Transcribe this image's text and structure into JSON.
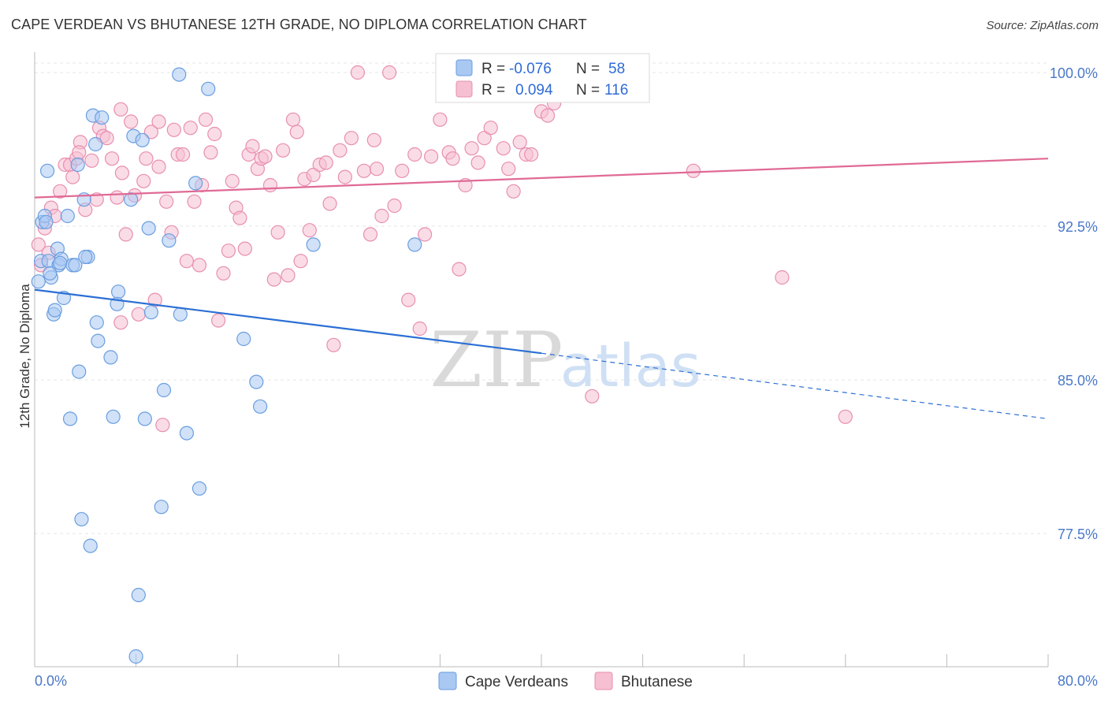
{
  "title": "CAPE VERDEAN VS BHUTANESE 12TH GRADE, NO DIPLOMA CORRELATION CHART",
  "source": "Source: ZipAtlas.com",
  "watermark": {
    "zip": "ZIP",
    "atlas": "atlas"
  },
  "colors": {
    "blue_fill": "#a9c8f2",
    "blue_stroke": "#6a9ee0",
    "blue_line": "#2b6fd4",
    "pink_fill": "#f6bfd2",
    "pink_stroke": "#e88fb0",
    "pink_line": "#e06a95",
    "tick_text": "#4a78c8",
    "grid": "#e4e4e4"
  },
  "legend": {
    "rows": [
      {
        "r_label": "R =",
        "r_value": "-0.076",
        "n_label": "N =",
        "n_value": "58",
        "color": "blue"
      },
      {
        "r_label": "R =",
        "r_value": "0.094",
        "n_label": "N =",
        "n_value": "116",
        "color": "pink"
      }
    ]
  },
  "bottom_legend": [
    {
      "label": "Cape Verdeans",
      "color": "blue"
    },
    {
      "label": "Bhutanese",
      "color": "pink"
    }
  ],
  "chart_data": {
    "type": "scatter",
    "title": "CAPE VERDEAN VS BHUTANESE 12TH GRADE, NO DIPLOMA CORRELATION CHART",
    "xlabel": "",
    "ylabel": "12th Grade, No Diploma",
    "xlim": [
      0,
      80
    ],
    "ylim": [
      71,
      101
    ],
    "x_tick_labels": [
      "0.0%",
      "80.0%"
    ],
    "y_ticks": [
      77.5,
      85.0,
      92.5,
      100.0
    ],
    "y_tick_labels": [
      "77.5%",
      "85.0%",
      "92.5%",
      "100.0%"
    ],
    "grid": true,
    "series": [
      {
        "name": "Cape Verdeans",
        "color": "blue",
        "r": -0.076,
        "n": 58,
        "trend": {
          "x0": 0,
          "y0": 89.4,
          "x1": 40,
          "y1": 86.3,
          "dashed_to_x": 80,
          "dashed_to_y": 83.1
        },
        "points": [
          [
            0.3,
            89.8
          ],
          [
            0.5,
            90.8
          ],
          [
            0.6,
            92.7
          ],
          [
            0.8,
            93.0
          ],
          [
            1.0,
            95.2
          ],
          [
            1.1,
            90.8
          ],
          [
            1.3,
            90.0
          ],
          [
            1.5,
            88.2
          ],
          [
            1.6,
            88.4
          ],
          [
            1.8,
            91.4
          ],
          [
            1.9,
            90.6
          ],
          [
            2.1,
            90.9
          ],
          [
            2.3,
            89.0
          ],
          [
            2.6,
            93.0
          ],
          [
            2.8,
            83.1
          ],
          [
            3.0,
            90.6
          ],
          [
            3.2,
            90.6
          ],
          [
            3.4,
            95.5
          ],
          [
            3.5,
            85.4
          ],
          [
            3.7,
            78.2
          ],
          [
            3.9,
            93.8
          ],
          [
            4.2,
            91.0
          ],
          [
            4.4,
            76.9
          ],
          [
            4.6,
            97.9
          ],
          [
            4.8,
            96.5
          ],
          [
            4.9,
            87.8
          ],
          [
            5.0,
            86.9
          ],
          [
            5.3,
            97.8
          ],
          [
            6.0,
            86.1
          ],
          [
            6.2,
            83.2
          ],
          [
            6.6,
            89.3
          ],
          [
            7.6,
            93.8
          ],
          [
            7.8,
            96.9
          ],
          [
            8.0,
            71.5
          ],
          [
            8.2,
            74.5
          ],
          [
            8.5,
            96.7
          ],
          [
            8.7,
            83.1
          ],
          [
            9.0,
            92.4
          ],
          [
            9.2,
            88.3
          ],
          [
            10.0,
            78.8
          ],
          [
            10.2,
            84.5
          ],
          [
            10.6,
            91.8
          ],
          [
            11.4,
            99.9
          ],
          [
            11.5,
            88.2
          ],
          [
            12.0,
            82.4
          ],
          [
            12.7,
            94.6
          ],
          [
            13.0,
            79.7
          ],
          [
            13.7,
            99.2
          ],
          [
            16.5,
            87.0
          ],
          [
            17.5,
            84.9
          ],
          [
            17.8,
            83.7
          ],
          [
            22.0,
            91.6
          ],
          [
            30.0,
            91.6
          ],
          [
            1.2,
            90.2
          ],
          [
            2.0,
            90.7
          ],
          [
            4.0,
            91.0
          ],
          [
            6.5,
            88.7
          ],
          [
            0.9,
            92.7
          ]
        ]
      },
      {
        "name": "Bhutanese",
        "color": "pink",
        "r": 0.094,
        "n": 116,
        "trend": {
          "x0": 0,
          "y0": 93.9,
          "x1": 80,
          "y1": 95.8
        },
        "points": [
          [
            0.3,
            91.6
          ],
          [
            0.5,
            90.6
          ],
          [
            0.8,
            92.4
          ],
          [
            1.1,
            91.2
          ],
          [
            1.3,
            93.4
          ],
          [
            1.6,
            93.0
          ],
          [
            2.0,
            94.2
          ],
          [
            2.4,
            95.5
          ],
          [
            2.8,
            95.5
          ],
          [
            3.0,
            94.9
          ],
          [
            3.3,
            95.8
          ],
          [
            3.6,
            96.6
          ],
          [
            4.0,
            93.3
          ],
          [
            4.5,
            95.7
          ],
          [
            4.9,
            93.8
          ],
          [
            5.1,
            97.3
          ],
          [
            5.4,
            96.9
          ],
          [
            5.7,
            96.8
          ],
          [
            6.1,
            95.8
          ],
          [
            6.5,
            93.9
          ],
          [
            6.8,
            87.8
          ],
          [
            6.9,
            95.1
          ],
          [
            7.2,
            92.1
          ],
          [
            7.6,
            97.6
          ],
          [
            7.9,
            94.0
          ],
          [
            8.2,
            88.2
          ],
          [
            8.6,
            94.7
          ],
          [
            8.8,
            95.8
          ],
          [
            9.2,
            97.1
          ],
          [
            9.5,
            88.9
          ],
          [
            9.8,
            95.4
          ],
          [
            10.1,
            82.8
          ],
          [
            10.4,
            93.7
          ],
          [
            10.8,
            92.2
          ],
          [
            11.0,
            97.2
          ],
          [
            11.3,
            96.0
          ],
          [
            11.7,
            96.0
          ],
          [
            12.0,
            90.8
          ],
          [
            12.3,
            97.3
          ],
          [
            12.6,
            93.7
          ],
          [
            13.0,
            90.6
          ],
          [
            13.2,
            94.5
          ],
          [
            13.5,
            97.7
          ],
          [
            13.9,
            96.1
          ],
          [
            14.2,
            97.0
          ],
          [
            14.5,
            87.9
          ],
          [
            14.9,
            90.2
          ],
          [
            15.3,
            91.3
          ],
          [
            15.6,
            94.7
          ],
          [
            15.9,
            93.4
          ],
          [
            16.2,
            92.9
          ],
          [
            16.6,
            91.4
          ],
          [
            16.9,
            96.0
          ],
          [
            17.2,
            96.4
          ],
          [
            17.6,
            95.3
          ],
          [
            17.9,
            95.8
          ],
          [
            18.2,
            95.9
          ],
          [
            18.6,
            94.5
          ],
          [
            18.9,
            89.9
          ],
          [
            19.2,
            92.2
          ],
          [
            19.6,
            96.2
          ],
          [
            20.0,
            90.1
          ],
          [
            20.4,
            97.7
          ],
          [
            20.7,
            97.1
          ],
          [
            21.0,
            90.8
          ],
          [
            21.3,
            94.8
          ],
          [
            21.7,
            92.3
          ],
          [
            22.0,
            95.0
          ],
          [
            22.5,
            95.5
          ],
          [
            23.0,
            95.6
          ],
          [
            23.3,
            93.6
          ],
          [
            23.6,
            86.7
          ],
          [
            24.1,
            96.2
          ],
          [
            24.5,
            94.9
          ],
          [
            25.0,
            96.8
          ],
          [
            25.5,
            100.0
          ],
          [
            26.0,
            95.2
          ],
          [
            26.5,
            92.1
          ],
          [
            27.0,
            95.3
          ],
          [
            27.4,
            93.0
          ],
          [
            28.0,
            100.0
          ],
          [
            28.4,
            93.5
          ],
          [
            29.0,
            95.2
          ],
          [
            29.5,
            88.9
          ],
          [
            30.0,
            96.0
          ],
          [
            30.4,
            87.5
          ],
          [
            30.8,
            92.1
          ],
          [
            31.3,
            95.9
          ],
          [
            32.0,
            97.7
          ],
          [
            32.7,
            96.1
          ],
          [
            33.0,
            95.8
          ],
          [
            33.5,
            90.4
          ],
          [
            34.0,
            94.5
          ],
          [
            34.5,
            96.3
          ],
          [
            35.0,
            95.6
          ],
          [
            35.5,
            96.8
          ],
          [
            36.0,
            97.3
          ],
          [
            37.0,
            96.3
          ],
          [
            37.4,
            95.3
          ],
          [
            37.8,
            94.2
          ],
          [
            38.3,
            96.6
          ],
          [
            38.8,
            96.0
          ],
          [
            39.2,
            96.0
          ],
          [
            40.0,
            98.1
          ],
          [
            41.0,
            98.5
          ],
          [
            42.0,
            100.0
          ],
          [
            44.0,
            84.2
          ],
          [
            44.5,
            99.0
          ],
          [
            52.0,
            95.2
          ],
          [
            59.0,
            90.0
          ],
          [
            64.0,
            83.2
          ],
          [
            40.5,
            97.9
          ],
          [
            26.8,
            96.7
          ],
          [
            9.8,
            97.6
          ],
          [
            6.8,
            98.2
          ],
          [
            3.5,
            96.1
          ]
        ]
      }
    ]
  }
}
